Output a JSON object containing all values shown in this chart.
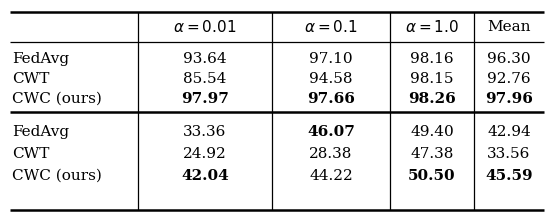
{
  "col_headers": [
    "$\\alpha = 0.01$",
    "$\\alpha = 0.1$",
    "$\\alpha = 1.0$",
    "Mean"
  ],
  "row_labels_top": [
    "FedAvg",
    "CWT",
    "CWC (ours)"
  ],
  "row_labels_bot": [
    "FedAvg",
    "CWT",
    "CWC (ours)"
  ],
  "top_data": [
    [
      "93.64",
      "97.10",
      "98.16",
      "96.30"
    ],
    [
      "85.54",
      "94.58",
      "98.15",
      "92.76"
    ],
    [
      "97.97",
      "97.66",
      "98.26",
      "97.96"
    ]
  ],
  "bot_data": [
    [
      "33.36",
      "46.07",
      "49.40",
      "42.94"
    ],
    [
      "24.92",
      "28.38",
      "47.38",
      "33.56"
    ],
    [
      "42.04",
      "44.22",
      "50.50",
      "45.59"
    ]
  ],
  "top_bold": [
    [
      false,
      false,
      false,
      false
    ],
    [
      false,
      false,
      false,
      false
    ],
    [
      true,
      true,
      true,
      true
    ]
  ],
  "bot_bold": [
    [
      false,
      true,
      false,
      false
    ],
    [
      false,
      false,
      false,
      false
    ],
    [
      true,
      false,
      true,
      true
    ]
  ],
  "bg_color": "#ffffff",
  "text_color": "#000000",
  "fontsize": 11.0,
  "header_fontsize": 11.0
}
